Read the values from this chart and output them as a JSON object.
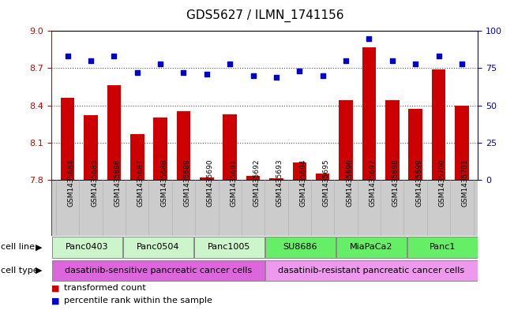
{
  "title": "GDS5627 / ILMN_1741156",
  "samples": [
    "GSM1435684",
    "GSM1435685",
    "GSM1435686",
    "GSM1435687",
    "GSM1435688",
    "GSM1435689",
    "GSM1435690",
    "GSM1435691",
    "GSM1435692",
    "GSM1435693",
    "GSM1435694",
    "GSM1435695",
    "GSM1435696",
    "GSM1435697",
    "GSM1435698",
    "GSM1435699",
    "GSM1435700",
    "GSM1435701"
  ],
  "transformed_count": [
    8.46,
    8.32,
    8.56,
    8.17,
    8.3,
    8.35,
    7.82,
    8.33,
    7.83,
    7.81,
    7.94,
    7.85,
    8.44,
    8.87,
    8.44,
    8.37,
    8.69,
    8.4
  ],
  "percentile_rank": [
    83,
    80,
    83,
    72,
    78,
    72,
    71,
    78,
    70,
    69,
    73,
    70,
    80,
    95,
    80,
    78,
    83,
    78
  ],
  "ymin": 7.8,
  "ymax": 9.0,
  "ylim_left": [
    7.8,
    9.0
  ],
  "ylim_right": [
    0,
    100
  ],
  "yticks_left": [
    7.8,
    8.1,
    8.4,
    8.7,
    9.0
  ],
  "yticks_right": [
    0,
    25,
    50,
    75,
    100
  ],
  "bar_color": "#cc0000",
  "dot_color": "#0000cc",
  "cell_line_groups": [
    {
      "label": "Panc0403",
      "start": 0,
      "end": 2,
      "color": "#ccf5cc"
    },
    {
      "label": "Panc0504",
      "start": 3,
      "end": 5,
      "color": "#ccf5cc"
    },
    {
      "label": "Panc1005",
      "start": 6,
      "end": 8,
      "color": "#ccf5cc"
    },
    {
      "label": "SU8686",
      "start": 9,
      "end": 11,
      "color": "#66ee66"
    },
    {
      "label": "MiaPaCa2",
      "start": 12,
      "end": 14,
      "color": "#66ee66"
    },
    {
      "label": "Panc1",
      "start": 15,
      "end": 17,
      "color": "#66ee66"
    }
  ],
  "cell_type_groups": [
    {
      "label": "dasatinib-sensitive pancreatic cancer cells",
      "start": 0,
      "end": 8,
      "color": "#dd66dd"
    },
    {
      "label": "dasatinib-resistant pancreatic cancer cells",
      "start": 9,
      "end": 17,
      "color": "#ee99ee"
    }
  ],
  "legend_bar_label": "transformed count",
  "legend_dot_label": "percentile rank within the sample",
  "bar_width": 0.6,
  "bg_color": "#ffffff",
  "tick_label_fontsize": 7,
  "axis_label_color_left": "#cc0000",
  "axis_label_color_right": "#0000cc",
  "xtick_bg_color": "#cccccc"
}
